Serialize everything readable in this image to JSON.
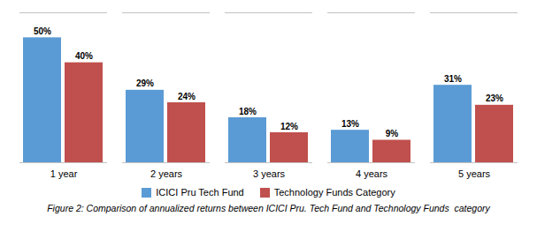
{
  "chart_data": {
    "type": "bar",
    "categories": [
      "1 year",
      "2 years",
      "3 years",
      "4 years",
      "5 years"
    ],
    "series": [
      {
        "name": "ICICI Pru Tech Fund",
        "color": "#5B9BD5",
        "values": [
          50,
          29,
          18,
          13,
          31
        ],
        "value_labels": [
          "50%",
          "29%",
          "18%",
          "13%",
          "31%"
        ]
      },
      {
        "name": "Technology Funds Category",
        "color": "#C0504D",
        "values": [
          40,
          24,
          12,
          9,
          23
        ],
        "value_labels": [
          "40%",
          "24%",
          "12%",
          "9%",
          "23%"
        ]
      }
    ],
    "ylim": [
      0,
      60
    ],
    "grid": false,
    "legend": "bottom",
    "data_labels": true,
    "tick_labels": "x",
    "caption": "Figure 2: Comparison of annualized returns between ICICI Pru. Tech Fund and Technology Funds  category"
  }
}
